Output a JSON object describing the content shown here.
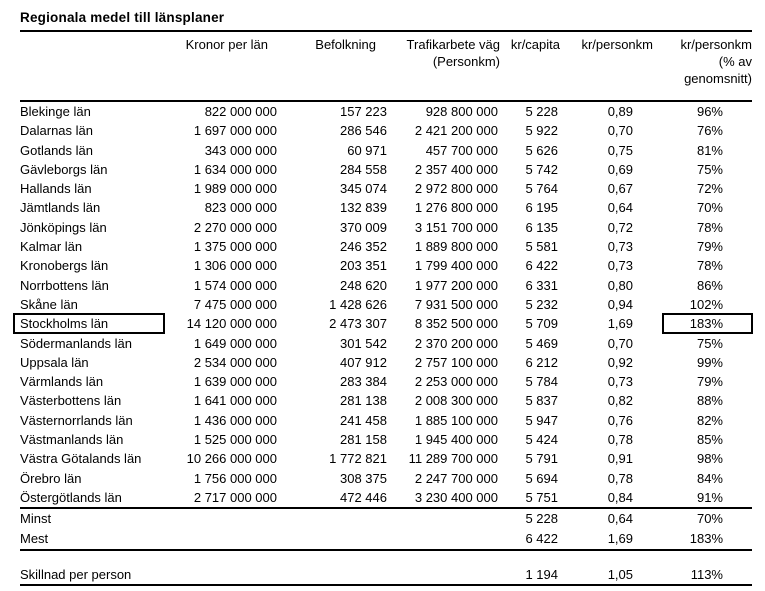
{
  "page": {
    "title": "Regionala medel till länsplaner"
  },
  "table": {
    "column_headers": {
      "kronor_per_lan": "Kronor per län",
      "befolkning": "Befolkning",
      "trafikarbete_line1": "Trafikarbete väg",
      "trafikarbete_line2": "(Personkm)",
      "kr_capita": "kr/capita",
      "kr_personkm": "kr/personkm",
      "pct_line1": "kr/personkm",
      "pct_line2": "(% av",
      "pct_line3": "genomsnitt)"
    },
    "rows": [
      {
        "name": "Blekinge län",
        "kronor": "822 000 000",
        "befolkning": "157 223",
        "trafikarbete": "928 800 000",
        "kr_capita": "5 228",
        "kr_personkm": "0,89",
        "pct": "96%",
        "boxed": false
      },
      {
        "name": "Dalarnas län",
        "kronor": "1 697 000 000",
        "befolkning": "286 546",
        "trafikarbete": "2 421 200 000",
        "kr_capita": "5 922",
        "kr_personkm": "0,70",
        "pct": "76%",
        "boxed": false
      },
      {
        "name": "Gotlands län",
        "kronor": "343 000 000",
        "befolkning": "60 971",
        "trafikarbete": "457 700 000",
        "kr_capita": "5 626",
        "kr_personkm": "0,75",
        "pct": "81%",
        "boxed": false
      },
      {
        "name": "Gävleborgs län",
        "kronor": "1 634 000 000",
        "befolkning": "284 558",
        "trafikarbete": "2 357 400 000",
        "kr_capita": "5 742",
        "kr_personkm": "0,69",
        "pct": "75%",
        "boxed": false
      },
      {
        "name": "Hallands län",
        "kronor": "1 989 000 000",
        "befolkning": "345 074",
        "trafikarbete": "2 972 800 000",
        "kr_capita": "5 764",
        "kr_personkm": "0,67",
        "pct": "72%",
        "boxed": false
      },
      {
        "name": "Jämtlands län",
        "kronor": "823 000 000",
        "befolkning": "132 839",
        "trafikarbete": "1 276 800 000",
        "kr_capita": "6 195",
        "kr_personkm": "0,64",
        "pct": "70%",
        "boxed": false
      },
      {
        "name": "Jönköpings län",
        "kronor": "2 270 000 000",
        "befolkning": "370 009",
        "trafikarbete": "3 151 700 000",
        "kr_capita": "6 135",
        "kr_personkm": "0,72",
        "pct": "78%",
        "boxed": false
      },
      {
        "name": "Kalmar län",
        "kronor": "1 375 000 000",
        "befolkning": "246 352",
        "trafikarbete": "1 889 800 000",
        "kr_capita": "5 581",
        "kr_personkm": "0,73",
        "pct": "79%",
        "boxed": false
      },
      {
        "name": "Kronobergs län",
        "kronor": "1 306 000 000",
        "befolkning": "203 351",
        "trafikarbete": "1 799 400 000",
        "kr_capita": "6 422",
        "kr_personkm": "0,73",
        "pct": "78%",
        "boxed": false
      },
      {
        "name": "Norrbottens län",
        "kronor": "1 574 000 000",
        "befolkning": "248 620",
        "trafikarbete": "1 977 200 000",
        "kr_capita": "6 331",
        "kr_personkm": "0,80",
        "pct": "86%",
        "boxed": false
      },
      {
        "name": "Skåne län",
        "kronor": "7 475 000 000",
        "befolkning": "1 428 626",
        "trafikarbete": "7 931 500 000",
        "kr_capita": "5 232",
        "kr_personkm": "0,94",
        "pct": "102%",
        "boxed": false
      },
      {
        "name": "Stockholms län",
        "kronor": "14 120 000 000",
        "befolkning": "2 473 307",
        "trafikarbete": "8 352 500 000",
        "kr_capita": "5 709",
        "kr_personkm": "1,69",
        "pct": "183%",
        "boxed": true
      },
      {
        "name": "Södermanlands län",
        "kronor": "1 649 000 000",
        "befolkning": "301 542",
        "trafikarbete": "2 370 200 000",
        "kr_capita": "5 469",
        "kr_personkm": "0,70",
        "pct": "75%",
        "boxed": false
      },
      {
        "name": "Uppsala län",
        "kronor": "2 534 000 000",
        "befolkning": "407 912",
        "trafikarbete": "2 757 100 000",
        "kr_capita": "6 212",
        "kr_personkm": "0,92",
        "pct": "99%",
        "boxed": false
      },
      {
        "name": "Värmlands län",
        "kronor": "1 639 000 000",
        "befolkning": "283 384",
        "trafikarbete": "2 253 000 000",
        "kr_capita": "5 784",
        "kr_personkm": "0,73",
        "pct": "79%",
        "boxed": false
      },
      {
        "name": "Västerbottens län",
        "kronor": "1 641 000 000",
        "befolkning": "281 138",
        "trafikarbete": "2 008 300 000",
        "kr_capita": "5 837",
        "kr_personkm": "0,82",
        "pct": "88%",
        "boxed": false
      },
      {
        "name": "Västernorrlands län",
        "kronor": "1 436 000 000",
        "befolkning": "241 458",
        "trafikarbete": "1 885 100 000",
        "kr_capita": "5 947",
        "kr_personkm": "0,76",
        "pct": "82%",
        "boxed": false
      },
      {
        "name": "Västmanlands län",
        "kronor": "1 525 000 000",
        "befolkning": "281 158",
        "trafikarbete": "1 945 400 000",
        "kr_capita": "5 424",
        "kr_personkm": "0,78",
        "pct": "85%",
        "boxed": false
      },
      {
        "name": "Västra Götalands län",
        "kronor": "10 266 000 000",
        "befolkning": "1 772 821",
        "trafikarbete": "11 289 700 000",
        "kr_capita": "5 791",
        "kr_personkm": "0,91",
        "pct": "98%",
        "boxed": false
      },
      {
        "name": "Örebro län",
        "kronor": "1 756 000 000",
        "befolkning": "308 375",
        "trafikarbete": "2 247 700 000",
        "kr_capita": "5 694",
        "kr_personkm": "0,78",
        "pct": "84%",
        "boxed": false
      },
      {
        "name": "Östergötlands län",
        "kronor": "2 717 000 000",
        "befolkning": "472 446",
        "trafikarbete": "3 230 400 000",
        "kr_capita": "5 751",
        "kr_personkm": "0,84",
        "pct": "91%",
        "boxed": false
      }
    ],
    "summary_rows": [
      {
        "label": "Minst",
        "kr_capita": "5 228",
        "kr_personkm": "0,64",
        "pct": "70%"
      },
      {
        "label": "Mest",
        "kr_capita": "6 422",
        "kr_personkm": "1,69",
        "pct": "183%"
      }
    ],
    "diff_row": {
      "label": "Skillnad per person",
      "kr_capita": "1 194",
      "kr_personkm": "1,05",
      "pct": "113%"
    }
  }
}
